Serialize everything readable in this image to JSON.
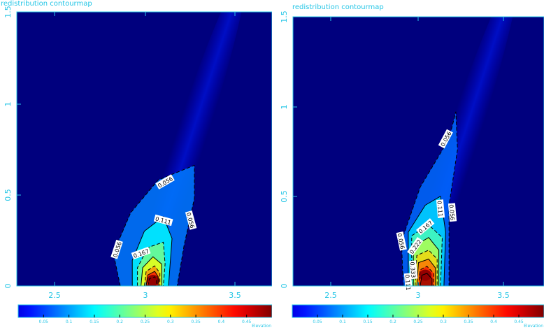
{
  "colors": {
    "axis": "#26c6e6",
    "field_background": "#00007e",
    "contour_line": "#000000"
  },
  "chart_data": [
    {
      "type": "heatmap",
      "title": "redistribution contourmap",
      "x_ticks": [
        "2.5",
        "3",
        "3.5"
      ],
      "y_ticks": [
        "0",
        "0.5",
        "1",
        "1.5"
      ],
      "xlim": [
        2.3,
        3.78
      ],
      "ylim": [
        0,
        1.5
      ],
      "colorbar": {
        "label": "Elevation",
        "ticks": [
          "0.05",
          "0.1",
          "0.15",
          "0.2",
          "0.25",
          "0.3",
          "0.35",
          "0.4",
          "0.45"
        ],
        "range": [
          0,
          0.5
        ]
      },
      "peak": {
        "x": 3.09,
        "y": 0.03,
        "value": 0.5
      },
      "contours": [
        {
          "level": "0.056",
          "style": "dashed",
          "points": [
            [
              2.9,
              0.0
            ],
            [
              2.86,
              0.18
            ],
            [
              2.96,
              0.4
            ],
            [
              3.12,
              0.58
            ],
            [
              3.33,
              0.66
            ],
            [
              3.33,
              0.48
            ],
            [
              3.27,
              0.22
            ],
            [
              3.23,
              0.0
            ]
          ]
        },
        {
          "level": "0.111",
          "style": "solid",
          "points": [
            [
              2.97,
              0.0
            ],
            [
              2.97,
              0.14
            ],
            [
              3.04,
              0.3
            ],
            [
              3.15,
              0.38
            ],
            [
              3.2,
              0.26
            ],
            [
              3.18,
              0.0
            ]
          ]
        },
        {
          "level": "0.167",
          "style": "dashed",
          "points": [
            [
              3.0,
              0.0
            ],
            [
              3.0,
              0.1
            ],
            [
              3.06,
              0.21
            ],
            [
              3.15,
              0.24
            ],
            [
              3.16,
              0.12
            ],
            [
              3.15,
              0.0
            ]
          ]
        },
        {
          "level": "",
          "style": "solid",
          "points": [
            [
              3.02,
              0.0
            ],
            [
              3.03,
              0.1
            ],
            [
              3.09,
              0.16
            ],
            [
              3.14,
              0.12
            ],
            [
              3.14,
              0.0
            ]
          ]
        },
        {
          "level": "",
          "style": "dashed",
          "points": [
            [
              3.04,
              0.0
            ],
            [
              3.05,
              0.08
            ],
            [
              3.1,
              0.11
            ],
            [
              3.13,
              0.07
            ],
            [
              3.13,
              0.0
            ]
          ]
        },
        {
          "level": "",
          "style": "solid",
          "points": [
            [
              3.05,
              0.0
            ],
            [
              3.06,
              0.06
            ],
            [
              3.1,
              0.08
            ],
            [
              3.12,
              0.05
            ],
            [
              3.12,
              0.0
            ]
          ]
        },
        {
          "level": "",
          "style": "dashed",
          "points": [
            [
              3.06,
              0.0
            ],
            [
              3.07,
              0.04
            ],
            [
              3.1,
              0.05
            ],
            [
              3.11,
              0.03
            ],
            [
              3.11,
              0.0
            ]
          ]
        }
      ],
      "contour_labels": [
        {
          "text": "0.056",
          "x": 3.16,
          "y": 0.57,
          "angle": -30
        },
        {
          "text": "0.056",
          "x": 2.88,
          "y": 0.2,
          "angle": -72
        },
        {
          "text": "0.056",
          "x": 3.31,
          "y": 0.36,
          "angle": 75
        },
        {
          "text": "0.111",
          "x": 3.15,
          "y": 0.36,
          "angle": 15
        },
        {
          "text": "0.167",
          "x": 3.02,
          "y": 0.18,
          "angle": -20
        }
      ]
    },
    {
      "type": "heatmap",
      "title": "redistribution contourmap",
      "x_ticks": [
        "2.5",
        "3",
        "3.5"
      ],
      "y_ticks": [
        "0",
        "0.5",
        "1",
        "1.5"
      ],
      "xlim": [
        2.3,
        3.78
      ],
      "ylim": [
        0,
        1.5
      ],
      "colorbar": {
        "label": "Elevation",
        "ticks": [
          "0.05",
          "0.1",
          "0.15",
          "0.2",
          "0.25",
          "0.3",
          "0.35",
          "0.4",
          "0.45"
        ],
        "range": [
          0,
          0.5
        ]
      },
      "peak": {
        "x": 3.08,
        "y": 0.06,
        "value": 0.5
      },
      "contours": [
        {
          "level": "0.056",
          "style": "dashed",
          "points": [
            [
              2.95,
              0.0
            ],
            [
              2.94,
              0.25
            ],
            [
              3.05,
              0.55
            ],
            [
              3.22,
              0.82
            ],
            [
              3.26,
              0.97
            ],
            [
              3.27,
              0.76
            ],
            [
              3.22,
              0.45
            ],
            [
              3.22,
              0.0
            ]
          ]
        },
        {
          "level": "0.111",
          "style": "solid",
          "points": [
            [
              2.98,
              0.0
            ],
            [
              2.98,
              0.3
            ],
            [
              3.08,
              0.45
            ],
            [
              3.17,
              0.5
            ],
            [
              3.2,
              0.3
            ],
            [
              3.19,
              0.0
            ]
          ]
        },
        {
          "level": "0.167",
          "style": "dashed",
          "points": [
            [
              3.0,
              0.0
            ],
            [
              3.0,
              0.28
            ],
            [
              3.1,
              0.34
            ],
            [
              3.18,
              0.27
            ],
            [
              3.17,
              0.0
            ]
          ]
        },
        {
          "level": "0.222",
          "style": "solid",
          "points": [
            [
              3.01,
              0.0
            ],
            [
              3.01,
              0.22
            ],
            [
              3.1,
              0.27
            ],
            [
              3.16,
              0.2
            ],
            [
              3.16,
              0.0
            ]
          ]
        },
        {
          "level": "",
          "style": "dashed",
          "points": [
            [
              3.02,
              0.0
            ],
            [
              3.03,
              0.17
            ],
            [
              3.1,
              0.2
            ],
            [
              3.15,
              0.15
            ],
            [
              3.15,
              0.0
            ]
          ]
        },
        {
          "level": "",
          "style": "solid",
          "points": [
            [
              3.03,
              0.0
            ],
            [
              3.04,
              0.13
            ],
            [
              3.1,
              0.15
            ],
            [
              3.14,
              0.1
            ],
            [
              3.14,
              0.0
            ]
          ]
        },
        {
          "level": "0.333",
          "style": "dashed",
          "points": [
            [
              3.04,
              0.0
            ],
            [
              3.05,
              0.09
            ],
            [
              3.09,
              0.11
            ],
            [
              3.13,
              0.07
            ],
            [
              3.13,
              0.0
            ]
          ]
        },
        {
          "level": "",
          "style": "solid",
          "points": [
            [
              3.05,
              0.0
            ],
            [
              3.06,
              0.06
            ],
            [
              3.09,
              0.07
            ],
            [
              3.12,
              0.04
            ],
            [
              3.12,
              0.0
            ]
          ]
        }
      ],
      "contour_labels": [
        {
          "text": "0.056",
          "x": 3.2,
          "y": 0.82,
          "angle": -62
        },
        {
          "text": "0.056",
          "x": 2.94,
          "y": 0.25,
          "angle": 78
        },
        {
          "text": "0.056",
          "x": 3.24,
          "y": 0.41,
          "angle": 85
        },
        {
          "text": "0.111",
          "x": 3.17,
          "y": 0.43,
          "angle": 85
        },
        {
          "text": "0.111",
          "x": 2.98,
          "y": 0.02,
          "angle": 85
        },
        {
          "text": "0.167",
          "x": 3.08,
          "y": 0.33,
          "angle": -40
        },
        {
          "text": "0.222",
          "x": 3.02,
          "y": 0.22,
          "angle": -55
        },
        {
          "text": "0.333",
          "x": 3.01,
          "y": 0.09,
          "angle": 85
        }
      ]
    }
  ]
}
